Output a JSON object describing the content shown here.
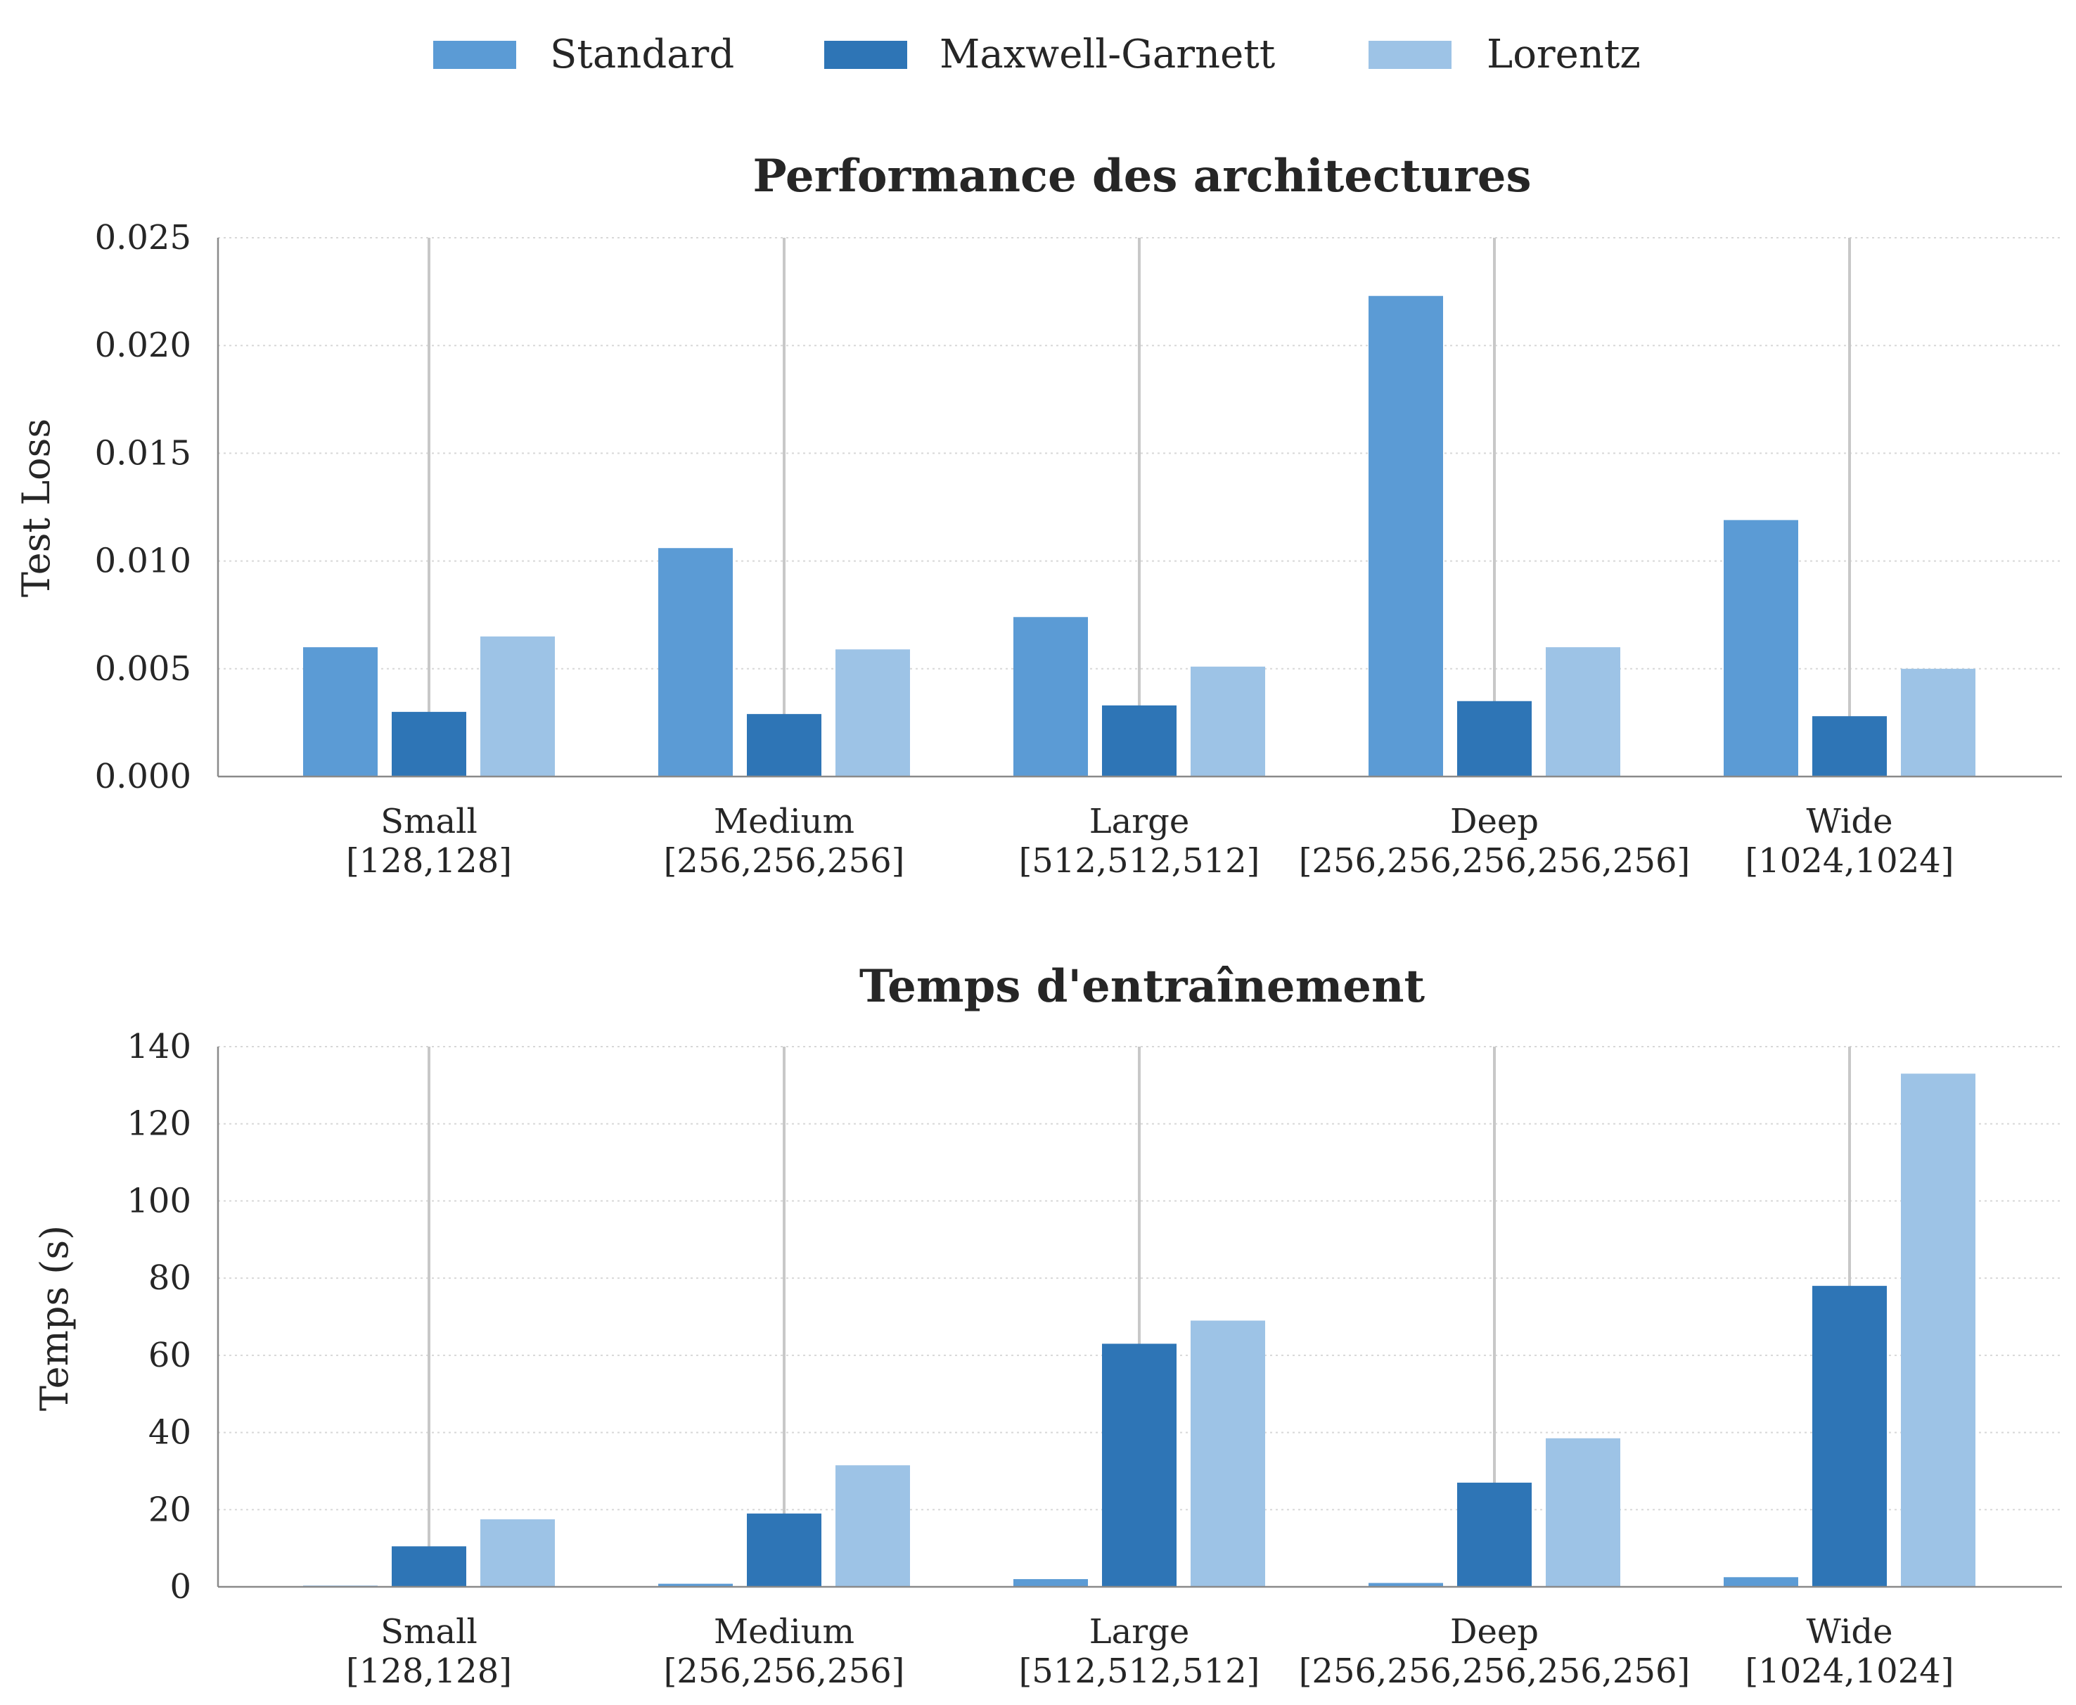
{
  "legend": [
    {
      "label": "Standard",
      "color": "#5b9bd5"
    },
    {
      "label": "Maxwell-Garnett",
      "color": "#2e75b6"
    },
    {
      "label": "Lorentz",
      "color": "#9dc3e6"
    }
  ],
  "chart_data": [
    {
      "type": "bar",
      "title": "Performance des architectures",
      "xlabel": "",
      "ylabel": "Test Loss",
      "ylim": [
        0,
        0.025
      ],
      "yticks": [
        "0.000",
        "0.005",
        "0.010",
        "0.015",
        "0.020",
        "0.025"
      ],
      "grid": true,
      "legend_position": "top-center",
      "categories": [
        {
          "name": "Small",
          "arch": "[128,128]"
        },
        {
          "name": "Medium",
          "arch": "[256,256,256]"
        },
        {
          "name": "Large",
          "arch": "[512,512,512]"
        },
        {
          "name": "Deep",
          "arch": "[256,256,256,256,256]"
        },
        {
          "name": "Wide",
          "arch": "[1024,1024]"
        }
      ],
      "series": [
        {
          "name": "Standard",
          "values": [
            0.006,
            0.0106,
            0.0074,
            0.0223,
            0.0119
          ]
        },
        {
          "name": "Maxwell-Garnett",
          "values": [
            0.003,
            0.0029,
            0.0033,
            0.0035,
            0.0028
          ]
        },
        {
          "name": "Lorentz",
          "values": [
            0.0065,
            0.0059,
            0.0051,
            0.006,
            0.005
          ]
        }
      ]
    },
    {
      "type": "bar",
      "title": "Temps d'entraînement",
      "xlabel": "",
      "ylabel": "Temps (s)",
      "ylim": [
        0,
        140
      ],
      "yticks": [
        "0",
        "20",
        "40",
        "60",
        "80",
        "100",
        "120",
        "140"
      ],
      "grid": true,
      "categories": [
        {
          "name": "Small",
          "arch": "[128,128]"
        },
        {
          "name": "Medium",
          "arch": "[256,256,256]"
        },
        {
          "name": "Large",
          "arch": "[512,512,512]"
        },
        {
          "name": "Deep",
          "arch": "[256,256,256,256,256]"
        },
        {
          "name": "Wide",
          "arch": "[1024,1024]"
        }
      ],
      "series": [
        {
          "name": "Standard",
          "values": [
            0.3,
            0.8,
            2.0,
            1.0,
            2.5
          ]
        },
        {
          "name": "Maxwell-Garnett",
          "values": [
            10.5,
            19.0,
            63.0,
            27.0,
            78.0
          ]
        },
        {
          "name": "Lorentz",
          "values": [
            17.5,
            31.5,
            69.0,
            38.5,
            133.0
          ]
        }
      ]
    }
  ]
}
